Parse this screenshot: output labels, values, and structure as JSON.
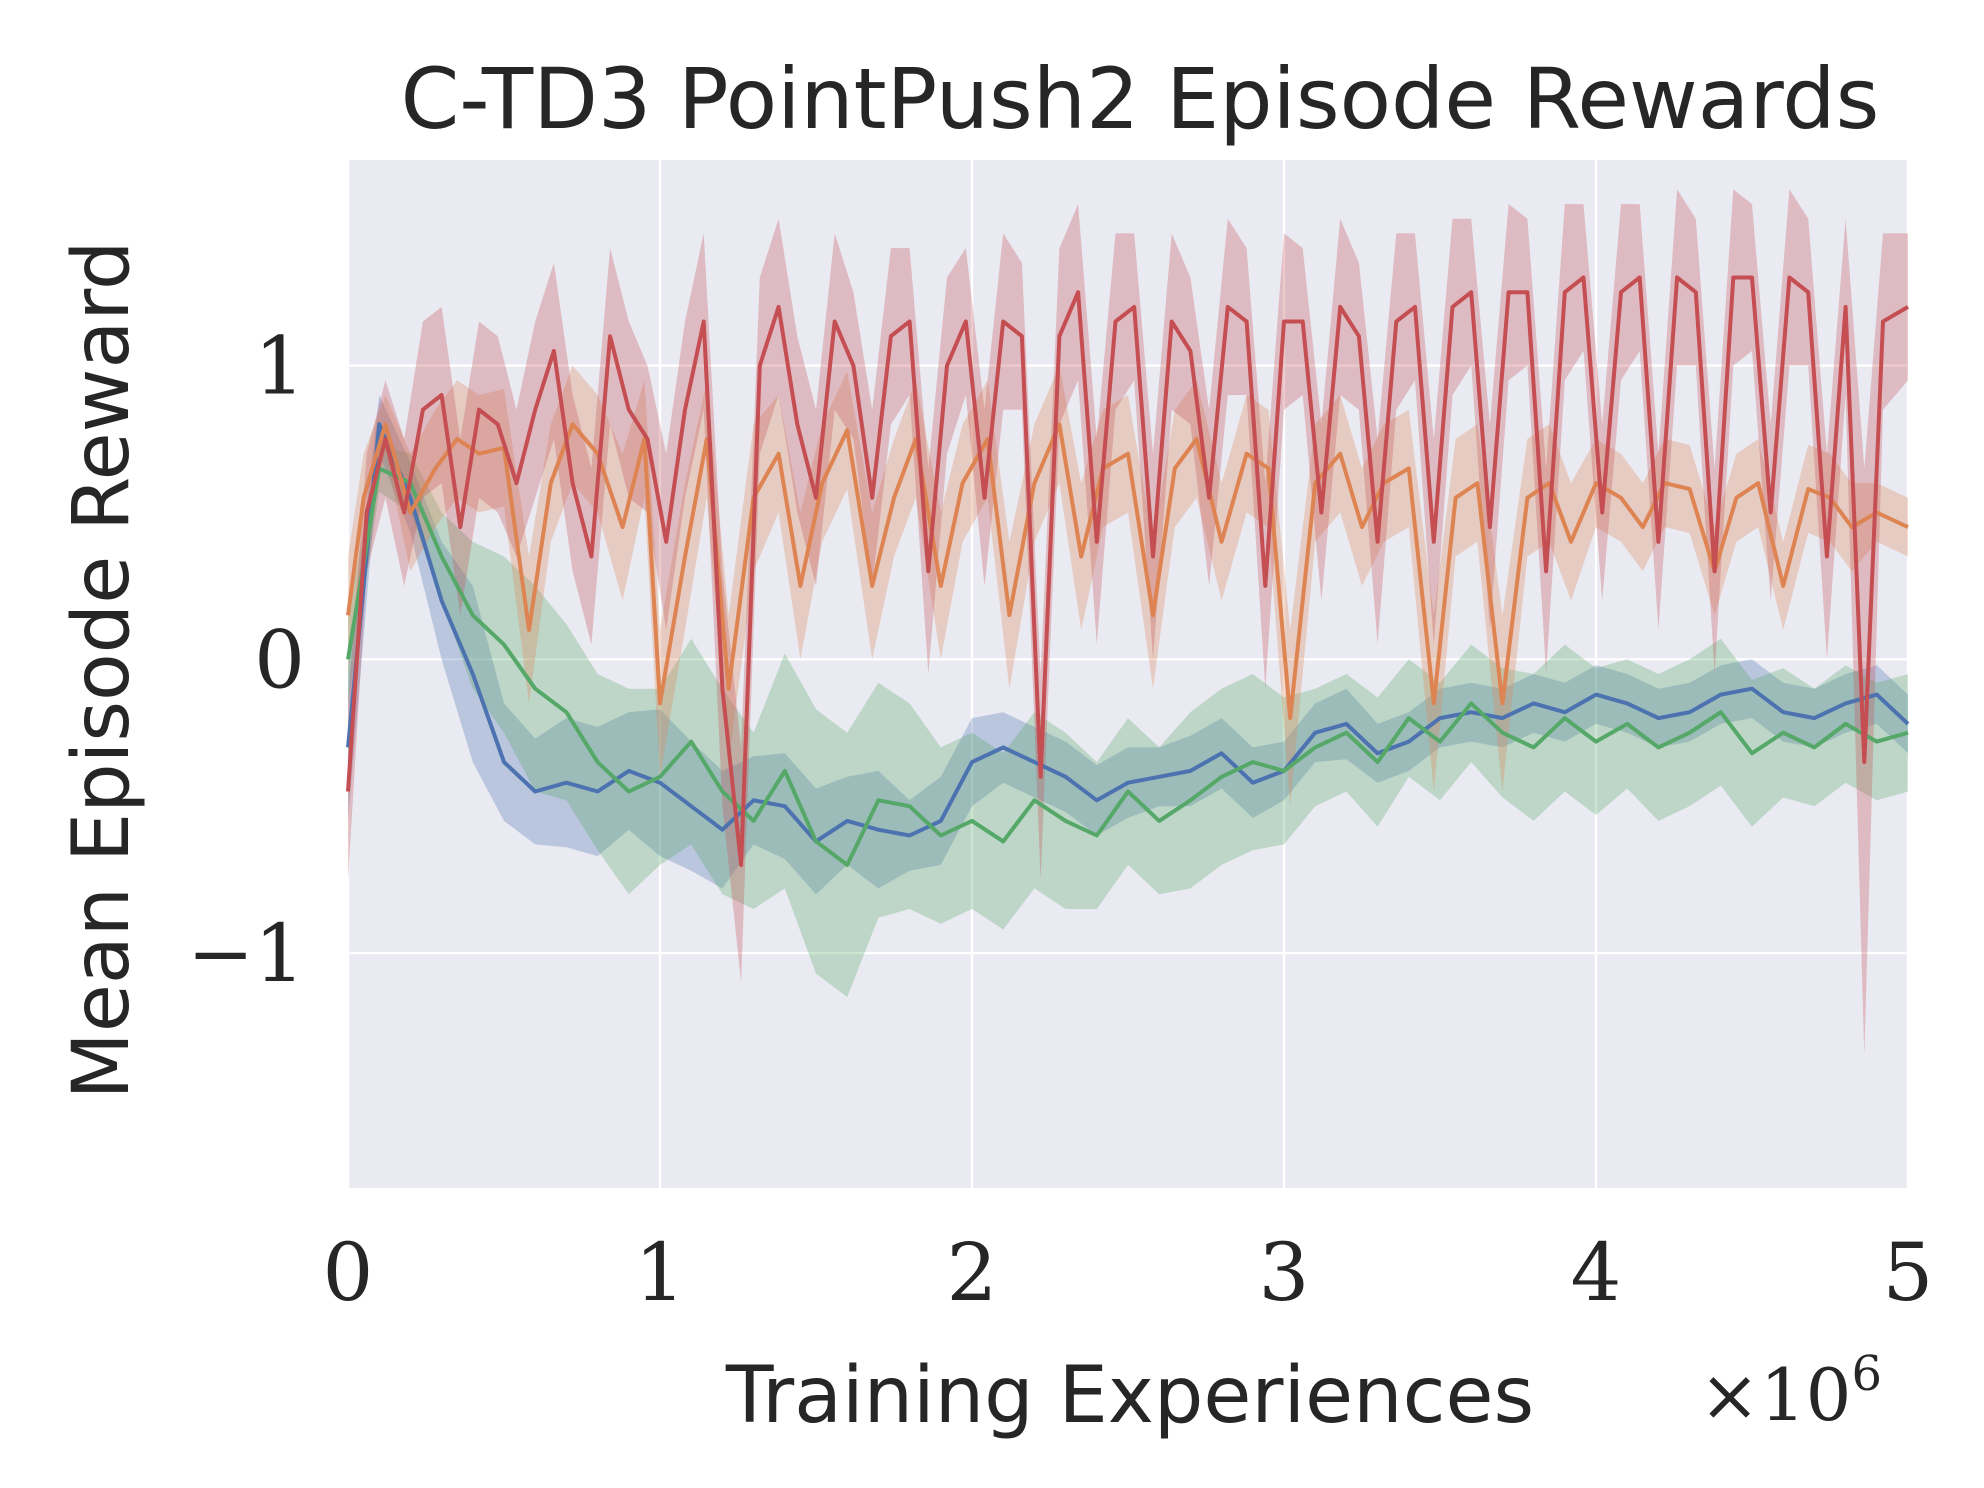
{
  "chart_data": {
    "type": "line",
    "title": "C-TD3 PointPush2 Episode Rewards",
    "xlabel": "Training Experiences",
    "ylabel": "Mean Episode Reward",
    "x_offset_label": "×10",
    "x_offset_exp": "6",
    "xlim": [
      0,
      5
    ],
    "ylim": [
      -1.8,
      1.7
    ],
    "xticks": [
      0,
      1,
      2,
      3,
      4,
      5
    ],
    "xtick_labels": [
      "0",
      "1",
      "2",
      "3",
      "4",
      "5"
    ],
    "yticks": [
      -1,
      0,
      1
    ],
    "ytick_labels": [
      "−1",
      "0",
      "1"
    ],
    "grid": true,
    "legend": "none",
    "background_color": "#eaeaf2",
    "series": [
      {
        "name": "blue",
        "color": "#4c72b0",
        "x": [
          0,
          0.1,
          0.2,
          0.3,
          0.4,
          0.5,
          0.6,
          0.7,
          0.8,
          0.9,
          1.0,
          1.1,
          1.2,
          1.3,
          1.4,
          1.5,
          1.6,
          1.7,
          1.8,
          1.9,
          2.0,
          2.1,
          2.2,
          2.3,
          2.4,
          2.5,
          2.6,
          2.7,
          2.8,
          2.9,
          3.0,
          3.1,
          3.2,
          3.3,
          3.4,
          3.5,
          3.6,
          3.7,
          3.8,
          3.9,
          4.0,
          4.1,
          4.2,
          4.3,
          4.4,
          4.5,
          4.6,
          4.7,
          4.8,
          4.9,
          5.0
        ],
        "y": [
          -0.3,
          0.8,
          0.55,
          0.2,
          -0.05,
          -0.35,
          -0.45,
          -0.42,
          -0.45,
          -0.38,
          -0.42,
          -0.5,
          -0.58,
          -0.48,
          -0.5,
          -0.62,
          -0.55,
          -0.58,
          -0.6,
          -0.55,
          -0.35,
          -0.3,
          -0.35,
          -0.4,
          -0.48,
          -0.42,
          -0.4,
          -0.38,
          -0.32,
          -0.42,
          -0.38,
          -0.25,
          -0.22,
          -0.32,
          -0.28,
          -0.2,
          -0.18,
          -0.2,
          -0.15,
          -0.18,
          -0.12,
          -0.15,
          -0.2,
          -0.18,
          -0.12,
          -0.1,
          -0.18,
          -0.2,
          -0.15,
          -0.12,
          -0.22
        ],
        "band": [
          0.25,
          0.1,
          0.12,
          0.2,
          0.3,
          0.2,
          0.18,
          0.22,
          0.22,
          0.2,
          0.25,
          0.22,
          0.2,
          0.15,
          0.18,
          0.18,
          0.15,
          0.2,
          0.12,
          0.15,
          0.15,
          0.12,
          0.12,
          0.12,
          0.12,
          0.12,
          0.1,
          0.12,
          0.12,
          0.12,
          0.1,
          0.1,
          0.12,
          0.1,
          0.1,
          0.1,
          0.1,
          0.1,
          0.1,
          0.1,
          0.1,
          0.1,
          0.1,
          0.1,
          0.1,
          0.1,
          0.1,
          0.1,
          0.1,
          0.1,
          0.1
        ]
      },
      {
        "name": "green",
        "color": "#55a868",
        "x": [
          0,
          0.1,
          0.2,
          0.3,
          0.4,
          0.5,
          0.6,
          0.7,
          0.8,
          0.9,
          1.0,
          1.1,
          1.2,
          1.3,
          1.4,
          1.5,
          1.6,
          1.7,
          1.8,
          1.9,
          2.0,
          2.1,
          2.2,
          2.3,
          2.4,
          2.5,
          2.6,
          2.7,
          2.8,
          2.9,
          3.0,
          3.1,
          3.2,
          3.3,
          3.4,
          3.5,
          3.6,
          3.7,
          3.8,
          3.9,
          4.0,
          4.1,
          4.2,
          4.3,
          4.4,
          4.5,
          4.6,
          4.7,
          4.8,
          4.9,
          5.0
        ],
        "y": [
          0.0,
          0.65,
          0.6,
          0.35,
          0.15,
          0.05,
          -0.1,
          -0.18,
          -0.35,
          -0.45,
          -0.4,
          -0.28,
          -0.45,
          -0.55,
          -0.38,
          -0.62,
          -0.7,
          -0.48,
          -0.5,
          -0.6,
          -0.55,
          -0.62,
          -0.48,
          -0.55,
          -0.6,
          -0.45,
          -0.55,
          -0.48,
          -0.4,
          -0.35,
          -0.38,
          -0.3,
          -0.25,
          -0.35,
          -0.2,
          -0.28,
          -0.15,
          -0.25,
          -0.3,
          -0.2,
          -0.28,
          -0.22,
          -0.3,
          -0.25,
          -0.18,
          -0.32,
          -0.25,
          -0.3,
          -0.22,
          -0.28,
          -0.25
        ],
        "band": [
          0.15,
          0.08,
          0.1,
          0.15,
          0.25,
          0.3,
          0.35,
          0.3,
          0.3,
          0.35,
          0.3,
          0.35,
          0.35,
          0.3,
          0.4,
          0.45,
          0.45,
          0.4,
          0.35,
          0.3,
          0.3,
          0.3,
          0.3,
          0.3,
          0.25,
          0.25,
          0.25,
          0.3,
          0.3,
          0.3,
          0.25,
          0.2,
          0.2,
          0.22,
          0.2,
          0.2,
          0.2,
          0.22,
          0.25,
          0.25,
          0.25,
          0.22,
          0.25,
          0.25,
          0.25,
          0.25,
          0.22,
          0.2,
          0.2,
          0.2,
          0.2
        ]
      },
      {
        "name": "orange",
        "color": "#dd8452",
        "x": [
          0,
          0.05,
          0.12,
          0.2,
          0.28,
          0.35,
          0.42,
          0.5,
          0.58,
          0.65,
          0.72,
          0.8,
          0.88,
          0.95,
          1.0,
          1.08,
          1.15,
          1.22,
          1.3,
          1.38,
          1.45,
          1.52,
          1.6,
          1.68,
          1.75,
          1.82,
          1.9,
          1.97,
          2.05,
          2.12,
          2.2,
          2.28,
          2.35,
          2.42,
          2.5,
          2.58,
          2.65,
          2.72,
          2.8,
          2.88,
          2.95,
          3.02,
          3.1,
          3.18,
          3.25,
          3.32,
          3.4,
          3.48,
          3.55,
          3.62,
          3.7,
          3.78,
          3.85,
          3.92,
          4.0,
          4.08,
          4.15,
          4.22,
          4.3,
          4.38,
          4.45,
          4.52,
          4.6,
          4.68,
          4.75,
          4.82,
          4.9,
          5.0
        ],
        "y": [
          0.15,
          0.55,
          0.8,
          0.5,
          0.65,
          0.75,
          0.7,
          0.72,
          0.1,
          0.6,
          0.8,
          0.7,
          0.45,
          0.75,
          -0.15,
          0.35,
          0.75,
          -0.1,
          0.55,
          0.7,
          0.25,
          0.6,
          0.78,
          0.25,
          0.55,
          0.75,
          0.25,
          0.6,
          0.75,
          0.15,
          0.6,
          0.8,
          0.35,
          0.65,
          0.7,
          0.15,
          0.65,
          0.75,
          0.4,
          0.7,
          0.65,
          -0.2,
          0.6,
          0.7,
          0.45,
          0.6,
          0.65,
          -0.15,
          0.55,
          0.6,
          -0.15,
          0.55,
          0.6,
          0.4,
          0.6,
          0.55,
          0.45,
          0.6,
          0.58,
          0.3,
          0.55,
          0.6,
          0.25,
          0.58,
          0.55,
          0.45,
          0.5,
          0.45
        ],
        "band": [
          0.2,
          0.15,
          0.1,
          0.2,
          0.2,
          0.2,
          0.2,
          0.2,
          0.25,
          0.2,
          0.2,
          0.2,
          0.25,
          0.2,
          0.25,
          0.25,
          0.2,
          0.25,
          0.25,
          0.2,
          0.25,
          0.2,
          0.2,
          0.25,
          0.2,
          0.2,
          0.25,
          0.2,
          0.2,
          0.25,
          0.2,
          0.2,
          0.25,
          0.2,
          0.2,
          0.25,
          0.2,
          0.2,
          0.2,
          0.2,
          0.2,
          0.3,
          0.2,
          0.2,
          0.2,
          0.2,
          0.2,
          0.3,
          0.2,
          0.2,
          0.3,
          0.2,
          0.2,
          0.2,
          0.15,
          0.15,
          0.15,
          0.15,
          0.15,
          0.15,
          0.15,
          0.15,
          0.15,
          0.15,
          0.15,
          0.15,
          0.1,
          0.1
        ]
      },
      {
        "name": "red",
        "color": "#c44e52",
        "x": [
          0,
          0.06,
          0.12,
          0.18,
          0.24,
          0.3,
          0.36,
          0.42,
          0.48,
          0.54,
          0.6,
          0.66,
          0.72,
          0.78,
          0.84,
          0.9,
          0.96,
          1.02,
          1.08,
          1.14,
          1.2,
          1.26,
          1.32,
          1.38,
          1.44,
          1.5,
          1.56,
          1.62,
          1.68,
          1.74,
          1.8,
          1.86,
          1.92,
          1.98,
          2.04,
          2.1,
          2.16,
          2.22,
          2.28,
          2.34,
          2.4,
          2.46,
          2.52,
          2.58,
          2.64,
          2.7,
          2.76,
          2.82,
          2.88,
          2.94,
          3.0,
          3.06,
          3.12,
          3.18,
          3.24,
          3.3,
          3.36,
          3.42,
          3.48,
          3.54,
          3.6,
          3.66,
          3.72,
          3.78,
          3.84,
          3.9,
          3.96,
          4.02,
          4.08,
          4.14,
          4.2,
          4.26,
          4.32,
          4.38,
          4.44,
          4.5,
          4.56,
          4.62,
          4.68,
          4.74,
          4.8,
          4.86,
          4.92,
          5.0
        ],
        "y": [
          -0.45,
          0.5,
          0.75,
          0.5,
          0.85,
          0.9,
          0.45,
          0.85,
          0.8,
          0.6,
          0.85,
          1.05,
          0.6,
          0.35,
          1.1,
          0.85,
          0.75,
          0.4,
          0.85,
          1.15,
          -0.1,
          -0.7,
          1.0,
          1.2,
          0.8,
          0.55,
          1.15,
          1.0,
          0.55,
          1.1,
          1.15,
          0.3,
          1.0,
          1.15,
          0.55,
          1.15,
          1.1,
          -0.4,
          1.1,
          1.25,
          0.4,
          1.15,
          1.2,
          0.35,
          1.15,
          1.05,
          0.55,
          1.2,
          1.15,
          0.25,
          1.15,
          1.15,
          0.5,
          1.2,
          1.1,
          0.4,
          1.15,
          1.2,
          0.4,
          1.2,
          1.25,
          0.45,
          1.25,
          1.25,
          0.3,
          1.25,
          1.3,
          0.5,
          1.25,
          1.3,
          0.4,
          1.3,
          1.25,
          0.3,
          1.3,
          1.3,
          0.5,
          1.3,
          1.25,
          0.35,
          1.2,
          -0.35,
          1.15,
          1.2
        ],
        "band": [
          0.3,
          0.2,
          0.2,
          0.25,
          0.3,
          0.3,
          0.3,
          0.3,
          0.3,
          0.25,
          0.3,
          0.3,
          0.3,
          0.3,
          0.3,
          0.3,
          0.25,
          0.3,
          0.3,
          0.3,
          0.4,
          0.4,
          0.3,
          0.3,
          0.3,
          0.3,
          0.3,
          0.25,
          0.3,
          0.3,
          0.25,
          0.35,
          0.3,
          0.25,
          0.3,
          0.3,
          0.25,
          0.35,
          0.3,
          0.3,
          0.35,
          0.3,
          0.25,
          0.35,
          0.3,
          0.25,
          0.3,
          0.3,
          0.25,
          0.35,
          0.3,
          0.25,
          0.3,
          0.3,
          0.25,
          0.35,
          0.3,
          0.25,
          0.35,
          0.3,
          0.25,
          0.35,
          0.3,
          0.25,
          0.35,
          0.3,
          0.25,
          0.3,
          0.3,
          0.25,
          0.3,
          0.3,
          0.25,
          0.35,
          0.3,
          0.25,
          0.3,
          0.3,
          0.25,
          0.35,
          0.3,
          1.0,
          0.3,
          0.25
        ]
      }
    ]
  }
}
